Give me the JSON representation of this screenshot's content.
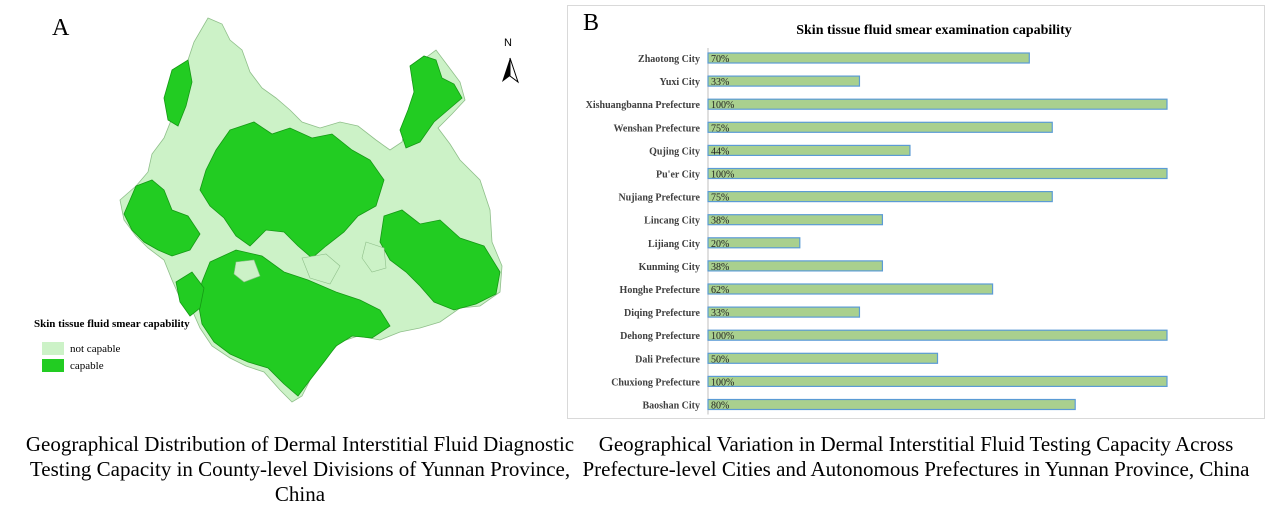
{
  "panel_a": {
    "letter": "A",
    "north_label": "N",
    "legend": {
      "title": "Skin tissue fluid smear capability",
      "items": [
        {
          "label": "not capable",
          "color": "#ccf2c7"
        },
        {
          "label": "capable",
          "color": "#22cc22"
        }
      ]
    },
    "caption": "Geographical Distribution of Dermal Interstitial Fluid Diagnostic Testing Capacity in County-level Divisions of Yunnan Province, China"
  },
  "panel_b": {
    "letter": "B",
    "caption": "Geographical Variation in Dermal Interstitial Fluid Testing Capacity Across Prefecture-level Cities and Autonomous Prefectures in Yunnan Province, China"
  },
  "chart_data": {
    "type": "bar",
    "orientation": "horizontal",
    "title": "Skin tissue fluid smear examination capability",
    "xlabel": "",
    "ylabel": "",
    "xlim": [
      0,
      100
    ],
    "grid": false,
    "bar_color": "#a9d08e",
    "bar_edge_color": "#5b9bd5",
    "categories": [
      "Zhaotong City",
      "Yuxi City",
      "Xishuangbanna Prefecture",
      "Wenshan  Prefecture",
      "Qujing City",
      "Pu'er City",
      "Nujiang Prefecture",
      "Lincang City",
      "Lijiang City",
      "Kunming City",
      "Honghe Prefecture",
      "Diqing Prefecture",
      "Dehong Prefecture",
      "Dali Prefecture",
      "Chuxiong Prefecture",
      "Baoshan City"
    ],
    "values": [
      70,
      33,
      100,
      75,
      44,
      100,
      75,
      38,
      20,
      38,
      62,
      33,
      100,
      50,
      100,
      80
    ],
    "data_labels": [
      "70%",
      "33%",
      "100%",
      "75%",
      "44%",
      "100%",
      "75%",
      "38%",
      "20%",
      "38%",
      "62%",
      "33%",
      "100%",
      "50%",
      "100%",
      "80%"
    ]
  }
}
